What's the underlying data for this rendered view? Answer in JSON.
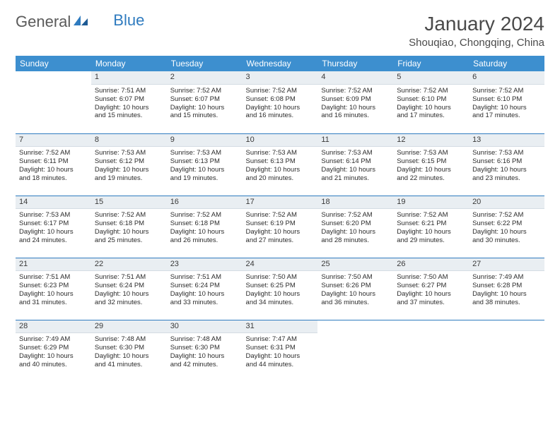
{
  "logo": {
    "text_general": "General",
    "text_blue": "Blue"
  },
  "title": "January 2024",
  "location": "Shouqiao, Chongqing, China",
  "colors": {
    "header_bg": "#3d8fcf",
    "header_text": "#ffffff",
    "daynum_bg": "#e9eef2",
    "row_border": "#2f7bbf",
    "logo_blue": "#2f7bbf",
    "text": "#333333"
  },
  "day_headers": [
    "Sunday",
    "Monday",
    "Tuesday",
    "Wednesday",
    "Thursday",
    "Friday",
    "Saturday"
  ],
  "weeks": [
    [
      {
        "n": "",
        "sunrise": "",
        "sunset": "",
        "daylight1": "",
        "daylight2": ""
      },
      {
        "n": "1",
        "sunrise": "Sunrise: 7:51 AM",
        "sunset": "Sunset: 6:07 PM",
        "daylight1": "Daylight: 10 hours",
        "daylight2": "and 15 minutes."
      },
      {
        "n": "2",
        "sunrise": "Sunrise: 7:52 AM",
        "sunset": "Sunset: 6:07 PM",
        "daylight1": "Daylight: 10 hours",
        "daylight2": "and 15 minutes."
      },
      {
        "n": "3",
        "sunrise": "Sunrise: 7:52 AM",
        "sunset": "Sunset: 6:08 PM",
        "daylight1": "Daylight: 10 hours",
        "daylight2": "and 16 minutes."
      },
      {
        "n": "4",
        "sunrise": "Sunrise: 7:52 AM",
        "sunset": "Sunset: 6:09 PM",
        "daylight1": "Daylight: 10 hours",
        "daylight2": "and 16 minutes."
      },
      {
        "n": "5",
        "sunrise": "Sunrise: 7:52 AM",
        "sunset": "Sunset: 6:10 PM",
        "daylight1": "Daylight: 10 hours",
        "daylight2": "and 17 minutes."
      },
      {
        "n": "6",
        "sunrise": "Sunrise: 7:52 AM",
        "sunset": "Sunset: 6:10 PM",
        "daylight1": "Daylight: 10 hours",
        "daylight2": "and 17 minutes."
      }
    ],
    [
      {
        "n": "7",
        "sunrise": "Sunrise: 7:52 AM",
        "sunset": "Sunset: 6:11 PM",
        "daylight1": "Daylight: 10 hours",
        "daylight2": "and 18 minutes."
      },
      {
        "n": "8",
        "sunrise": "Sunrise: 7:53 AM",
        "sunset": "Sunset: 6:12 PM",
        "daylight1": "Daylight: 10 hours",
        "daylight2": "and 19 minutes."
      },
      {
        "n": "9",
        "sunrise": "Sunrise: 7:53 AM",
        "sunset": "Sunset: 6:13 PM",
        "daylight1": "Daylight: 10 hours",
        "daylight2": "and 19 minutes."
      },
      {
        "n": "10",
        "sunrise": "Sunrise: 7:53 AM",
        "sunset": "Sunset: 6:13 PM",
        "daylight1": "Daylight: 10 hours",
        "daylight2": "and 20 minutes."
      },
      {
        "n": "11",
        "sunrise": "Sunrise: 7:53 AM",
        "sunset": "Sunset: 6:14 PM",
        "daylight1": "Daylight: 10 hours",
        "daylight2": "and 21 minutes."
      },
      {
        "n": "12",
        "sunrise": "Sunrise: 7:53 AM",
        "sunset": "Sunset: 6:15 PM",
        "daylight1": "Daylight: 10 hours",
        "daylight2": "and 22 minutes."
      },
      {
        "n": "13",
        "sunrise": "Sunrise: 7:53 AM",
        "sunset": "Sunset: 6:16 PM",
        "daylight1": "Daylight: 10 hours",
        "daylight2": "and 23 minutes."
      }
    ],
    [
      {
        "n": "14",
        "sunrise": "Sunrise: 7:53 AM",
        "sunset": "Sunset: 6:17 PM",
        "daylight1": "Daylight: 10 hours",
        "daylight2": "and 24 minutes."
      },
      {
        "n": "15",
        "sunrise": "Sunrise: 7:52 AM",
        "sunset": "Sunset: 6:18 PM",
        "daylight1": "Daylight: 10 hours",
        "daylight2": "and 25 minutes."
      },
      {
        "n": "16",
        "sunrise": "Sunrise: 7:52 AM",
        "sunset": "Sunset: 6:18 PM",
        "daylight1": "Daylight: 10 hours",
        "daylight2": "and 26 minutes."
      },
      {
        "n": "17",
        "sunrise": "Sunrise: 7:52 AM",
        "sunset": "Sunset: 6:19 PM",
        "daylight1": "Daylight: 10 hours",
        "daylight2": "and 27 minutes."
      },
      {
        "n": "18",
        "sunrise": "Sunrise: 7:52 AM",
        "sunset": "Sunset: 6:20 PM",
        "daylight1": "Daylight: 10 hours",
        "daylight2": "and 28 minutes."
      },
      {
        "n": "19",
        "sunrise": "Sunrise: 7:52 AM",
        "sunset": "Sunset: 6:21 PM",
        "daylight1": "Daylight: 10 hours",
        "daylight2": "and 29 minutes."
      },
      {
        "n": "20",
        "sunrise": "Sunrise: 7:52 AM",
        "sunset": "Sunset: 6:22 PM",
        "daylight1": "Daylight: 10 hours",
        "daylight2": "and 30 minutes."
      }
    ],
    [
      {
        "n": "21",
        "sunrise": "Sunrise: 7:51 AM",
        "sunset": "Sunset: 6:23 PM",
        "daylight1": "Daylight: 10 hours",
        "daylight2": "and 31 minutes."
      },
      {
        "n": "22",
        "sunrise": "Sunrise: 7:51 AM",
        "sunset": "Sunset: 6:24 PM",
        "daylight1": "Daylight: 10 hours",
        "daylight2": "and 32 minutes."
      },
      {
        "n": "23",
        "sunrise": "Sunrise: 7:51 AM",
        "sunset": "Sunset: 6:24 PM",
        "daylight1": "Daylight: 10 hours",
        "daylight2": "and 33 minutes."
      },
      {
        "n": "24",
        "sunrise": "Sunrise: 7:50 AM",
        "sunset": "Sunset: 6:25 PM",
        "daylight1": "Daylight: 10 hours",
        "daylight2": "and 34 minutes."
      },
      {
        "n": "25",
        "sunrise": "Sunrise: 7:50 AM",
        "sunset": "Sunset: 6:26 PM",
        "daylight1": "Daylight: 10 hours",
        "daylight2": "and 36 minutes."
      },
      {
        "n": "26",
        "sunrise": "Sunrise: 7:50 AM",
        "sunset": "Sunset: 6:27 PM",
        "daylight1": "Daylight: 10 hours",
        "daylight2": "and 37 minutes."
      },
      {
        "n": "27",
        "sunrise": "Sunrise: 7:49 AM",
        "sunset": "Sunset: 6:28 PM",
        "daylight1": "Daylight: 10 hours",
        "daylight2": "and 38 minutes."
      }
    ],
    [
      {
        "n": "28",
        "sunrise": "Sunrise: 7:49 AM",
        "sunset": "Sunset: 6:29 PM",
        "daylight1": "Daylight: 10 hours",
        "daylight2": "and 40 minutes."
      },
      {
        "n": "29",
        "sunrise": "Sunrise: 7:48 AM",
        "sunset": "Sunset: 6:30 PM",
        "daylight1": "Daylight: 10 hours",
        "daylight2": "and 41 minutes."
      },
      {
        "n": "30",
        "sunrise": "Sunrise: 7:48 AM",
        "sunset": "Sunset: 6:30 PM",
        "daylight1": "Daylight: 10 hours",
        "daylight2": "and 42 minutes."
      },
      {
        "n": "31",
        "sunrise": "Sunrise: 7:47 AM",
        "sunset": "Sunset: 6:31 PM",
        "daylight1": "Daylight: 10 hours",
        "daylight2": "and 44 minutes."
      },
      {
        "n": "",
        "sunrise": "",
        "sunset": "",
        "daylight1": "",
        "daylight2": ""
      },
      {
        "n": "",
        "sunrise": "",
        "sunset": "",
        "daylight1": "",
        "daylight2": ""
      },
      {
        "n": "",
        "sunrise": "",
        "sunset": "",
        "daylight1": "",
        "daylight2": ""
      }
    ]
  ]
}
